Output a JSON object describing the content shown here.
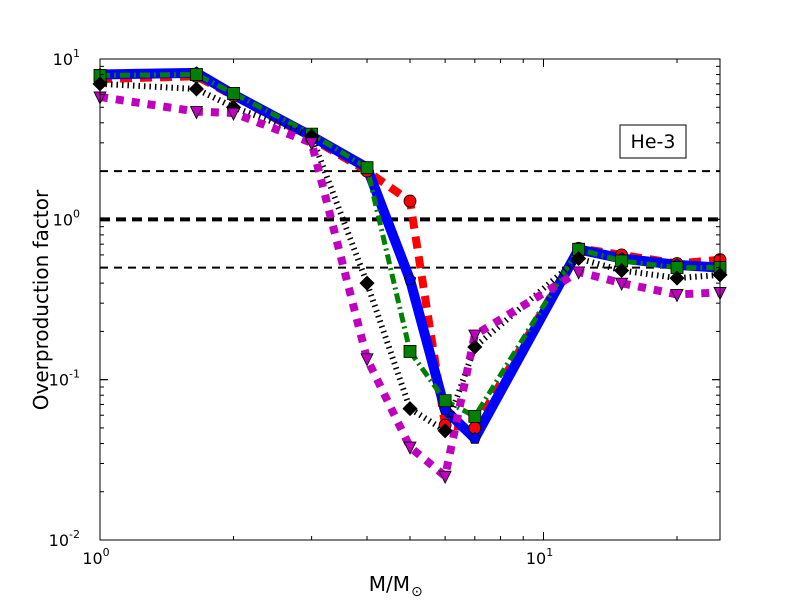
{
  "chart_data": {
    "type": "line",
    "title": "",
    "xlabel": "M/M",
    "xlabel_sub": "⊙",
    "ylabel": "Overproduction factor",
    "xscale": "log",
    "yscale": "log",
    "xlim": [
      1,
      25
    ],
    "ylim": [
      0.01,
      10
    ],
    "x_ticks": [
      {
        "value": 1,
        "base": "10",
        "exp": "0"
      },
      {
        "value": 10,
        "base": "10",
        "exp": "1"
      }
    ],
    "y_ticks": [
      {
        "value": 10,
        "base": "10",
        "exp": "1"
      },
      {
        "value": 1,
        "base": "10",
        "exp": "0"
      },
      {
        "value": 0.1,
        "base": "10",
        "exp": "-1"
      },
      {
        "value": 0.01,
        "base": "10",
        "exp": "-2"
      }
    ],
    "annotation": "He-3",
    "reference_lines": [
      2,
      1,
      0.5
    ],
    "x": [
      1,
      1.65,
      2,
      3,
      4,
      5,
      6,
      7,
      12,
      15,
      20,
      25
    ],
    "series": [
      {
        "color": "#ff0000",
        "marker": "circle",
        "style": "dashed",
        "values": [
          7.5,
          7.8,
          5.9,
          3.2,
          2.0,
          1.3,
          0.052,
          0.05,
          0.66,
          0.6,
          0.53,
          0.56
        ]
      },
      {
        "color": "#0000ff",
        "marker": "pentagon",
        "style": "solid",
        "values": [
          8.0,
          8.2,
          6.0,
          3.3,
          2.1,
          0.42,
          0.065,
          0.043,
          0.65,
          0.57,
          0.52,
          0.5
        ]
      },
      {
        "color": "#008000",
        "marker": "square",
        "style": "dashdot",
        "values": [
          7.9,
          8.0,
          6.1,
          3.4,
          2.1,
          0.15,
          0.074,
          0.059,
          0.65,
          0.55,
          0.5,
          0.5
        ]
      },
      {
        "color": "#000000",
        "marker": "diamond",
        "style": "dotted",
        "values": [
          7.0,
          6.5,
          5.0,
          3.3,
          0.4,
          0.066,
          0.048,
          0.16,
          0.57,
          0.48,
          0.43,
          0.45
        ]
      },
      {
        "color": "#bf00bf",
        "marker": "triangle-down",
        "style": "dotted-thick",
        "values": [
          5.8,
          4.7,
          4.6,
          3.0,
          0.135,
          0.038,
          0.025,
          0.19,
          0.47,
          0.4,
          0.34,
          0.35
        ]
      }
    ],
    "grid": false
  }
}
